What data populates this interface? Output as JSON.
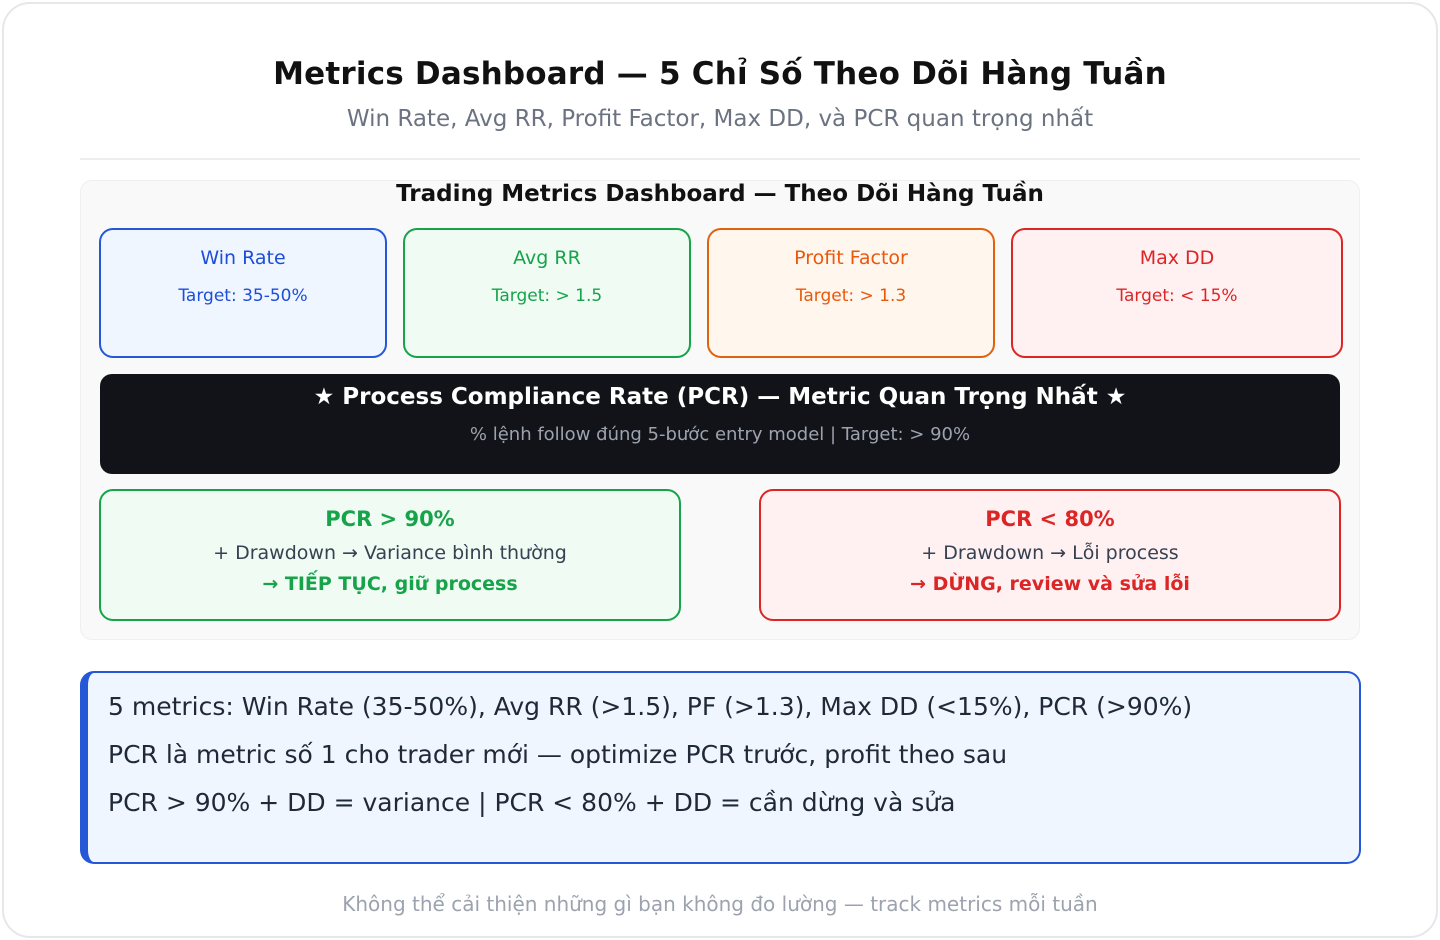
{
  "header": {
    "title": "Metrics Dashboard — 5 Chỉ Số Theo Dõi Hàng Tuần",
    "subtitle": "Win Rate, Avg RR, Profit Factor, Max DD, và PCR quan trọng nhất"
  },
  "panel": {
    "title": "Trading Metrics Dashboard — Theo Dõi Hàng Tuần",
    "metrics": [
      {
        "name": "Win Rate",
        "target": "Target: 35-50%",
        "color": "#1d4ed8"
      },
      {
        "name": "Avg RR",
        "target": "Target: > 1.5",
        "color": "#16a34a"
      },
      {
        "name": "Profit Factor",
        "target": "Target: > 1.3",
        "color": "#ea580c"
      },
      {
        "name": "Max DD",
        "target": "Target: < 15%",
        "color": "#dc2626"
      }
    ],
    "pcr": {
      "title": "★ Process Compliance Rate (PCR) — Metric Quan Trọng Nhất ★",
      "subtitle": "% lệnh follow đúng 5-bước entry model | Target: > 90%"
    },
    "rules": [
      {
        "head": "PCR > 90%",
        "line": "+ Drawdown → Variance bình thường",
        "action": "→ TIẾP TỤC, giữ process",
        "color": "#16a34a"
      },
      {
        "head": "PCR < 80%",
        "line": "+ Drawdown → Lỗi process",
        "action": "→ DỪNG, review và sửa lỗi",
        "color": "#dc2626"
      }
    ]
  },
  "summary": {
    "lines": [
      "5 metrics: Win Rate (35-50%), Avg RR (>1.5), PF (>1.3), Max DD (<15%), PCR (>90%)",
      "PCR là metric số 1 cho trader mới — optimize PCR trước, profit theo sau",
      "PCR > 90% + DD = variance | PCR < 80% + DD = cần dừng và sửa"
    ]
  },
  "footer": {
    "text": "Không thể cải thiện những gì bạn không đo lường — track metrics mỗi tuần"
  }
}
